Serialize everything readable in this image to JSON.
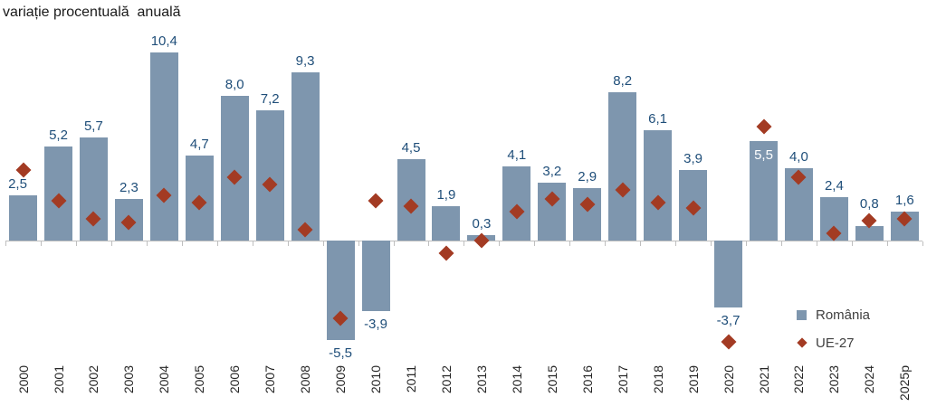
{
  "chart_data": {
    "type": "bar",
    "title": "variație procentuală  anuală",
    "categories": [
      "2000",
      "2001",
      "2002",
      "2003",
      "2004",
      "2005",
      "2006",
      "2007",
      "2008",
      "2009",
      "2010",
      "2011",
      "2012",
      "2013",
      "2014",
      "2015",
      "2016",
      "2017",
      "2018",
      "2019",
      "2020",
      "2021",
      "2022",
      "2023",
      "2024",
      "2025p"
    ],
    "series": [
      {
        "name": "România",
        "type": "bar",
        "color": "#7E96AE",
        "values": [
          2.5,
          5.2,
          5.7,
          2.3,
          10.4,
          4.7,
          8.0,
          7.2,
          9.3,
          -5.5,
          -3.9,
          4.5,
          1.9,
          0.3,
          4.1,
          3.2,
          2.9,
          8.2,
          6.1,
          3.9,
          -3.7,
          5.5,
          4.0,
          2.4,
          0.8,
          1.6
        ],
        "labels": [
          "2,5",
          "5,2",
          "5,7",
          "2,3",
          "10,4",
          "4,7",
          "8,0",
          "7,2",
          "9,3",
          "-5,5",
          "-3,9",
          "4,5",
          "1,9",
          "0,3",
          "4,1",
          "3,2",
          "2,9",
          "8,2",
          "6,1",
          "3,9",
          "-3,7",
          "5,5",
          "4,0",
          "2,4",
          "0,8",
          "1,6"
        ]
      },
      {
        "name": "UE-27",
        "type": "scatter",
        "marker": "diamond",
        "color": "#A33B23",
        "values": [
          3.9,
          2.2,
          1.2,
          1.0,
          2.5,
          2.1,
          3.5,
          3.1,
          0.6,
          -4.3,
          2.2,
          1.9,
          -0.7,
          0.0,
          1.6,
          2.3,
          2.0,
          2.8,
          2.1,
          1.8,
          -5.6,
          6.3,
          3.5,
          0.4,
          1.1,
          1.2
        ]
      }
    ],
    "value_label_color": "#1F4E79",
    "axis_color": "#BFBFBF",
    "ylim": [
      -7.5,
      11.5
    ],
    "grid": false,
    "legend_position": "bottom-right",
    "label_overrides": {
      "0": {
        "dx": -6
      },
      "21": {
        "inside": true,
        "color": "#FFFFFF"
      }
    }
  }
}
